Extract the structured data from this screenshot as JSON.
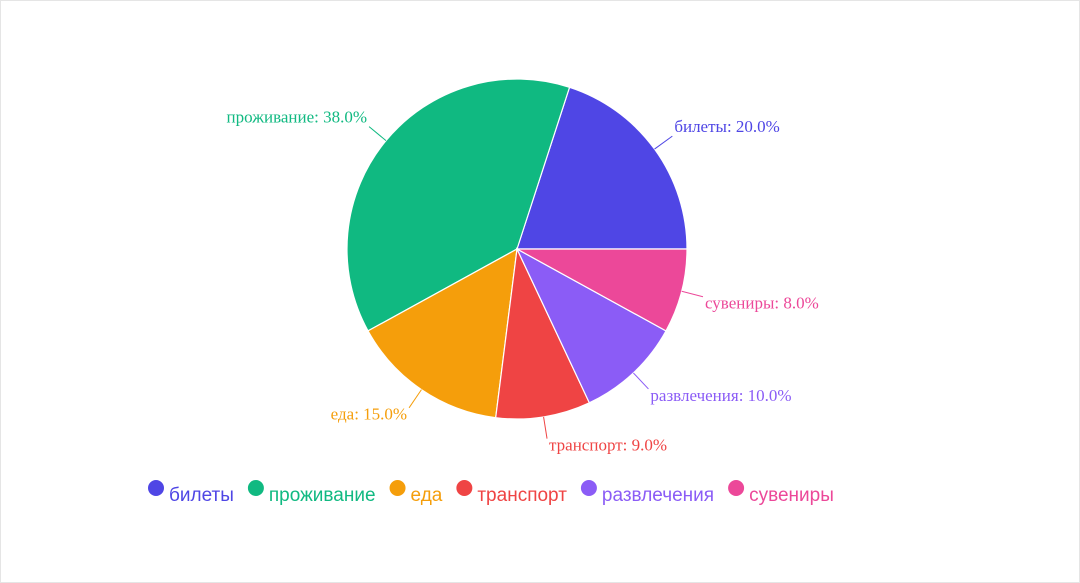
{
  "chart_data": {
    "type": "pie",
    "categories": [
      "билеты",
      "проживание",
      "еда",
      "транспорт",
      "развлечения",
      "сувениры"
    ],
    "values": [
      20,
      38,
      15,
      9,
      10,
      8
    ],
    "value_labels": [
      "билеты: 20.0%",
      "проживание: 38.0%",
      "еда: 15.0%",
      "транспорт: 9.0%",
      "развлечения: 10.0%",
      "сувениры: 8.0%"
    ],
    "colors": [
      "#4f46e5",
      "#10b981",
      "#f59e0b",
      "#ef4444",
      "#8b5cf6",
      "#ec4899"
    ],
    "legend": "bottom"
  }
}
